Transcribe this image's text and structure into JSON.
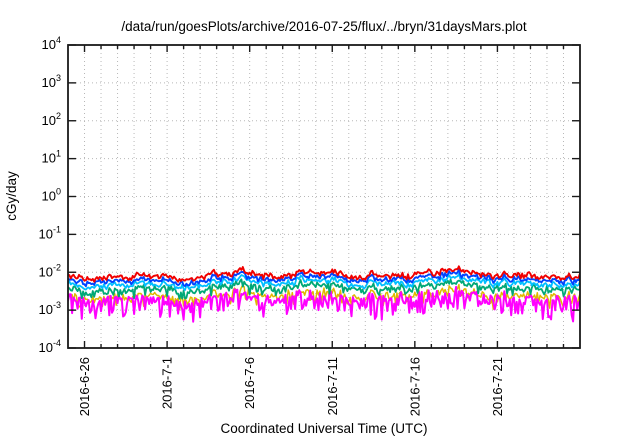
{
  "chart_data": {
    "type": "line",
    "title": "/data/run/goesPlots/archive/2016-07-25/flux/../bryn/31daysMars.plot",
    "xlabel": "Coordinated Universal Time (UTC)",
    "ylabel": "cGy/day",
    "y_scale": "log",
    "ylim": [
      0.0001,
      10000
    ],
    "y_ticks": [
      4,
      3,
      2,
      1,
      0,
      -1,
      -2,
      -3,
      -4
    ],
    "grid": true,
    "legend": "none",
    "x_start_date": "2016-6-25",
    "x_days_total": 31,
    "x_ticks": [
      {
        "day": 1,
        "label": "2016-6-26"
      },
      {
        "day": 6,
        "label": "2016-7-1"
      },
      {
        "day": 11,
        "label": "2016-7-6"
      },
      {
        "day": 16,
        "label": "2016-7-11"
      },
      {
        "day": 21,
        "label": "2016-7-16"
      },
      {
        "day": 26,
        "label": "2016-7-21"
      }
    ],
    "samples_per_day": 12,
    "shared_noise_dex": 0.1,
    "series": [
      {
        "name": "channel-yellow",
        "color": "#e0b800",
        "width": 1.5,
        "noise_dex": 0.08,
        "spike_chance": 0.25,
        "spike_depth": 0.3,
        "daily_values": [
          0.0022,
          0.0023,
          0.0023,
          0.0022,
          0.0023,
          0.0023,
          0.0023,
          0.0023,
          0.0024,
          0.0027,
          0.0036,
          0.0032,
          0.0025,
          0.0023,
          0.0029,
          0.0032,
          0.0027,
          0.0024,
          0.0023,
          0.0022,
          0.0023,
          0.0025,
          0.0029,
          0.0033,
          0.003,
          0.0027,
          0.0024,
          0.0023,
          0.0023,
          0.0023,
          0.0025
        ]
      },
      {
        "name": "channel-magenta",
        "color": "#ff00ff",
        "width": 2.0,
        "noise_dex": 0.12,
        "spike_chance": 0.5,
        "spike_depth": 0.5,
        "daily_values": [
          0.0019,
          0.002,
          0.002,
          0.0019,
          0.002,
          0.002,
          0.002,
          0.002,
          0.0021,
          0.0023,
          0.0031,
          0.0027,
          0.0021,
          0.002,
          0.0025,
          0.0027,
          0.0023,
          0.0021,
          0.002,
          0.0019,
          0.002,
          0.0021,
          0.0025,
          0.0029,
          0.0026,
          0.0023,
          0.0021,
          0.002,
          0.002,
          0.002,
          0.0021
        ]
      },
      {
        "name": "channel-green",
        "color": "#00a876",
        "width": 1.8,
        "noise_dex": 0.07,
        "spike_chance": 0.2,
        "spike_depth": 0.2,
        "daily_values": [
          0.0034,
          0.0035,
          0.0037,
          0.0034,
          0.0036,
          0.0035,
          0.0037,
          0.0036,
          0.0038,
          0.0042,
          0.0056,
          0.0049,
          0.0039,
          0.0036,
          0.0045,
          0.0049,
          0.0042,
          0.0038,
          0.0035,
          0.0034,
          0.0036,
          0.0039,
          0.0046,
          0.0052,
          0.0047,
          0.0042,
          0.0038,
          0.0036,
          0.0037,
          0.0036,
          0.0039
        ]
      },
      {
        "name": "channel-cyan",
        "color": "#00bfff",
        "width": 1.8,
        "noise_dex": 0.05,
        "spike_chance": 0,
        "spike_depth": 0,
        "daily_values": [
          0.0045,
          0.0047,
          0.0048,
          0.0045,
          0.0048,
          0.0047,
          0.0048,
          0.0047,
          0.005,
          0.0056,
          0.0074,
          0.0065,
          0.0051,
          0.0047,
          0.0059,
          0.0065,
          0.0056,
          0.005,
          0.0047,
          0.0045,
          0.0047,
          0.0051,
          0.0061,
          0.0068,
          0.0062,
          0.0056,
          0.005,
          0.0047,
          0.0048,
          0.0047,
          0.0051
        ]
      },
      {
        "name": "channel-blue",
        "color": "#0044ff",
        "width": 1.9,
        "noise_dex": 0.045,
        "spike_chance": 0,
        "spike_depth": 0,
        "daily_values": [
          0.0058,
          0.006,
          0.0062,
          0.0058,
          0.0062,
          0.006,
          0.0062,
          0.0061,
          0.0064,
          0.0072,
          0.0096,
          0.0084,
          0.0066,
          0.0061,
          0.0076,
          0.0084,
          0.0072,
          0.0064,
          0.006,
          0.0058,
          0.0061,
          0.0066,
          0.0078,
          0.0088,
          0.008,
          0.0072,
          0.0064,
          0.0061,
          0.0062,
          0.0061,
          0.0066
        ]
      },
      {
        "name": "channel-red",
        "color": "#f00000",
        "width": 1.9,
        "noise_dex": 0.045,
        "spike_chance": 0,
        "spike_depth": 0,
        "daily_values": [
          0.0072,
          0.0075,
          0.0078,
          0.0073,
          0.0077,
          0.0075,
          0.0078,
          0.0076,
          0.008,
          0.009,
          0.012,
          0.0105,
          0.0082,
          0.0076,
          0.0095,
          0.0105,
          0.009,
          0.008,
          0.0075,
          0.0072,
          0.0076,
          0.0082,
          0.0098,
          0.011,
          0.01,
          0.009,
          0.008,
          0.0076,
          0.0078,
          0.0076,
          0.0082
        ]
      }
    ]
  }
}
